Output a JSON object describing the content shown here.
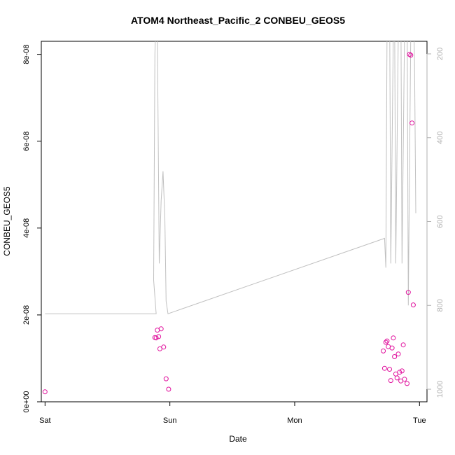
{
  "chart_data": {
    "type": "scatter",
    "title": "ATOM4 Northeast_Pacific_2 CONBEU_GEOS5",
    "xlabel": "Date",
    "ylabel": "CONBEU_GEOS5",
    "x_tick_labels": [
      "Sat",
      "Sun",
      "Mon",
      "Tue"
    ],
    "x_ticks": [
      0,
      1,
      2,
      3
    ],
    "xlim": [
      -0.03,
      3.06
    ],
    "y_tick_labels": [
      "0e+00",
      "2e-08",
      "4e-08",
      "6e-08",
      "8e-08"
    ],
    "y_ticks": [
      0,
      2e-08,
      4e-08,
      6e-08,
      8e-08
    ],
    "ylim": [
      0,
      8.3e-08
    ],
    "y2_tick_labels": [
      "200",
      "400",
      "600",
      "800",
      "1000"
    ],
    "y2_ticks": [
      200,
      400,
      600,
      800,
      1000
    ],
    "y2lim": [
      1030,
      170
    ],
    "grid": false,
    "series": [
      {
        "type": "scatter",
        "color": "#e0119d",
        "points": [
          [
            0.0,
            2.3e-09
          ],
          [
            0.88,
            1.48e-08
          ],
          [
            0.89,
            1.47e-08
          ],
          [
            0.9,
            1.65e-08
          ],
          [
            0.91,
            1.5e-08
          ],
          [
            0.92,
            1.22e-08
          ],
          [
            0.93,
            1.68e-08
          ],
          [
            0.95,
            1.26e-08
          ],
          [
            0.97,
            5.3e-09
          ],
          [
            0.99,
            2.9e-09
          ],
          [
            2.71,
            1.17e-08
          ],
          [
            2.72,
            7.7e-09
          ],
          [
            2.73,
            1.37e-08
          ],
          [
            2.74,
            1.4e-08
          ],
          [
            2.75,
            1.27e-08
          ],
          [
            2.76,
            7.5e-09
          ],
          [
            2.77,
            4.9e-09
          ],
          [
            2.78,
            1.24e-08
          ],
          [
            2.79,
            1.47e-08
          ],
          [
            2.8,
            1.04e-08
          ],
          [
            2.81,
            6.4e-09
          ],
          [
            2.82,
            5.5e-09
          ],
          [
            2.83,
            1.1e-08
          ],
          [
            2.84,
            6.8e-09
          ],
          [
            2.85,
            4.8e-09
          ],
          [
            2.86,
            7.1e-09
          ],
          [
            2.87,
            1.31e-08
          ],
          [
            2.88,
            5.2e-09
          ],
          [
            2.9,
            4.2e-09
          ],
          [
            2.91,
            2.52e-08
          ],
          [
            2.92,
            8e-08
          ],
          [
            2.93,
            7.98e-08
          ],
          [
            2.94,
            6.42e-08
          ],
          [
            2.95,
            2.23e-08
          ]
        ]
      },
      {
        "type": "line",
        "color": "#c0c0c0",
        "axis": "right",
        "points": [
          [
            0.0,
            820
          ],
          [
            0.89,
            820
          ],
          [
            0.87,
            740
          ],
          [
            0.88,
            200
          ],
          [
            0.895,
            50
          ],
          [
            0.9,
            150
          ],
          [
            0.915,
            700
          ],
          [
            0.93,
            550
          ],
          [
            0.945,
            480
          ],
          [
            0.96,
            590
          ],
          [
            0.97,
            790
          ],
          [
            0.985,
            820
          ],
          [
            2.72,
            640
          ],
          [
            2.73,
            710
          ],
          [
            2.74,
            150
          ],
          [
            2.76,
            50
          ],
          [
            2.77,
            700
          ],
          [
            2.79,
            150
          ],
          [
            2.8,
            60
          ],
          [
            2.81,
            700
          ],
          [
            2.83,
            150
          ],
          [
            2.85,
            50
          ],
          [
            2.86,
            700
          ],
          [
            2.88,
            150
          ],
          [
            2.9,
            50
          ],
          [
            2.91,
            800
          ],
          [
            2.93,
            150
          ],
          [
            2.95,
            60
          ],
          [
            2.96,
            220
          ],
          [
            2.97,
            580
          ]
        ]
      }
    ]
  }
}
